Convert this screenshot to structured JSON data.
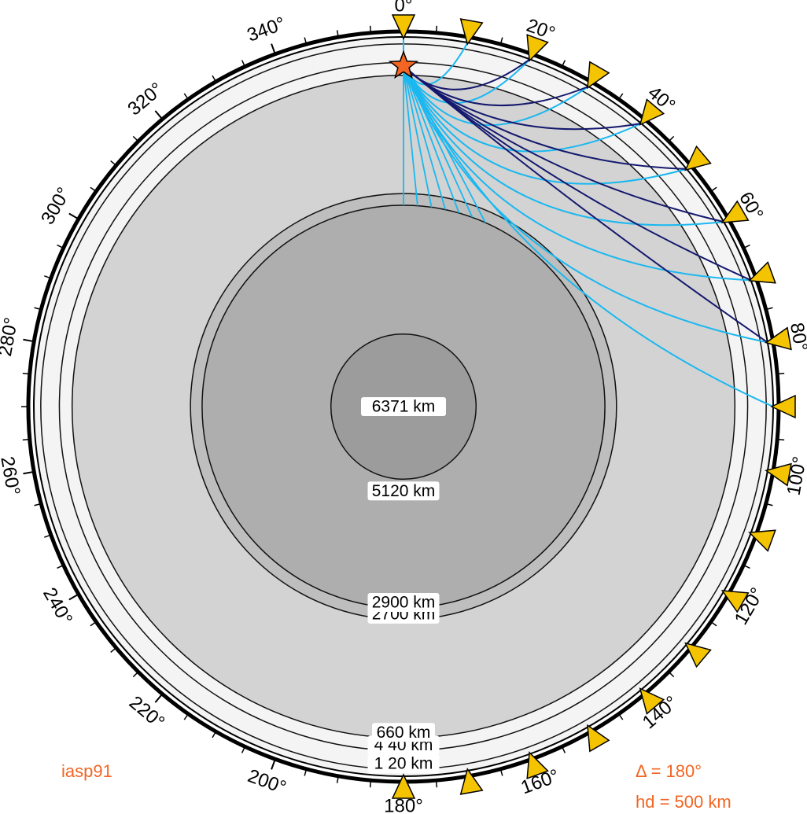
{
  "figure": {
    "model_label": "iasp91",
    "distance_label": "Δ = 180°",
    "depth_label": "hd = 500 km",
    "annotation_color": "#f26522"
  },
  "earth": {
    "radius_km": 6371,
    "source_depth_km": 500,
    "layers": [
      {
        "depth_km": 120,
        "label": "1 20 km",
        "fill": "#f4f4f4"
      },
      {
        "depth_km": 440,
        "label": "4 40 km",
        "fill": "#f4f4f4"
      },
      {
        "depth_km": 660,
        "label": "660 km",
        "fill": "#d3d3d3"
      },
      {
        "depth_km": 2700,
        "label": "2700 km",
        "fill": "#bebebe"
      },
      {
        "depth_km": 2900,
        "label": "2900 km",
        "fill": "#aeaeae"
      },
      {
        "depth_km": 5120,
        "label": "5120 km",
        "fill": "#9c9c9c"
      }
    ],
    "center_label": "6371 km"
  },
  "axis": {
    "tick_labels": [
      "0°",
      "20°",
      "40°",
      "60°",
      "80°",
      "100°",
      "120°",
      "140°",
      "160°",
      "180°",
      "200°",
      "220°",
      "240°",
      "260°",
      "280°",
      "300°",
      "320°",
      "340°"
    ],
    "label_interval_deg": 20,
    "minor_tick_interval_deg": 5
  },
  "stations": {
    "distances_deg": [
      0,
      10,
      20,
      30,
      40,
      50,
      60,
      70,
      80,
      90,
      100,
      110,
      120,
      130,
      140,
      150,
      160,
      170,
      180
    ],
    "color": "#f5c400"
  },
  "source": {
    "distance_deg": 0,
    "depth_km": 500,
    "color": "#f26522"
  },
  "rays": {
    "colors": {
      "direct": "#1ab8f0",
      "reflected": "#14196e"
    },
    "direct_distances_deg": [
      0,
      10,
      20,
      30,
      40,
      50,
      60,
      70,
      80,
      90
    ],
    "reflected_distances_deg": [
      20,
      30,
      40,
      50,
      60,
      70,
      80
    ],
    "ray_count_note": ""
  }
}
